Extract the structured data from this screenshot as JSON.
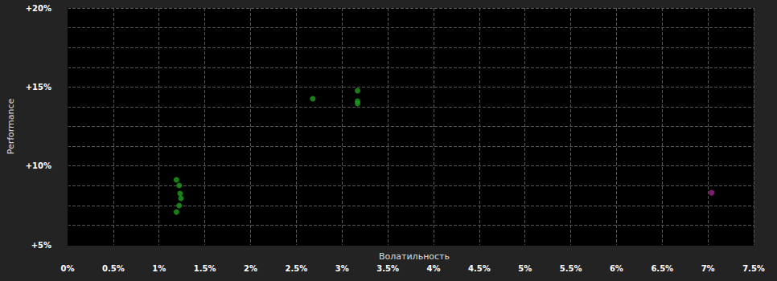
{
  "chart_data": {
    "type": "scatter",
    "x_label": "Волатильность",
    "y_label": "Performance",
    "xlim": [
      0,
      7.5
    ],
    "xticks": [
      {
        "value": 0,
        "label": "0%"
      },
      {
        "value": 0.5,
        "label": "0.5%"
      },
      {
        "value": 1,
        "label": "1%"
      },
      {
        "value": 1.5,
        "label": "1.5%"
      },
      {
        "value": 2,
        "label": "2%"
      },
      {
        "value": 2.5,
        "label": "2.5%"
      },
      {
        "value": 3,
        "label": "3%"
      },
      {
        "value": 3.5,
        "label": "3.5%"
      },
      {
        "value": 4,
        "label": "4%"
      },
      {
        "value": 4.5,
        "label": "4.5%"
      },
      {
        "value": 5,
        "label": "5%"
      },
      {
        "value": 5.5,
        "label": "5.5%"
      },
      {
        "value": 6,
        "label": "6%"
      },
      {
        "value": 6.5,
        "label": "6.5%"
      },
      {
        "value": 7,
        "label": "7%"
      },
      {
        "value": 7.5,
        "label": "7.5%"
      }
    ],
    "ylim": [
      5,
      20
    ],
    "yticks": [
      {
        "value": 5,
        "label": "+5%"
      },
      {
        "value": 10,
        "label": "+10%"
      },
      {
        "value": 15,
        "label": "+15%"
      },
      {
        "value": 20,
        "label": "+20%"
      }
    ],
    "grid": true,
    "series": [
      {
        "color": "#1e9e1e",
        "x": [
          1.19,
          1.22,
          1.23,
          1.24,
          1.22,
          1.19,
          2.68,
          3.17,
          3.17,
          3.17
        ],
        "values": [
          9.12,
          8.76,
          8.25,
          7.95,
          7.49,
          7.08,
          14.25,
          14.76,
          14.1,
          13.95
        ]
      },
      {
        "color": "#a3208f",
        "x": [
          7.04
        ],
        "values": [
          8.3
        ]
      }
    ]
  }
}
